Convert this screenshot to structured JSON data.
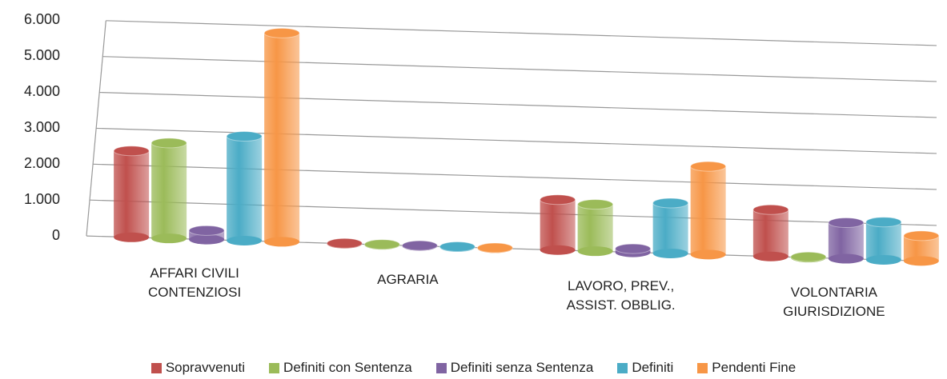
{
  "chart_data": {
    "type": "bar",
    "categories": [
      "AFFARI CIVILI CONTENZIOSI",
      "AGRARIA",
      "LAVORO, PREV., ASSIST. OBBLIG.",
      "VOLONTARIA GIURISDIZIONE"
    ],
    "series": [
      {
        "name": "Sopravvenuti",
        "color": "#c0504d",
        "values": [
          2400,
          10,
          1400,
          1300
        ]
      },
      {
        "name": "Definiti con Sentenza",
        "color": "#9bbb59",
        "values": [
          2650,
          10,
          1300,
          20
        ]
      },
      {
        "name": "Definiti senza Sentenza",
        "color": "#8064a2",
        "values": [
          250,
          10,
          100,
          1000
        ]
      },
      {
        "name": "Definiti",
        "color": "#4bacc6",
        "values": [
          2900,
          10,
          1400,
          1050
        ]
      },
      {
        "name": "Pendenti Fine",
        "color": "#f79646",
        "values": [
          5800,
          10,
          2450,
          700
        ]
      }
    ],
    "ylim": [
      0,
      6000
    ],
    "yticks": [
      0,
      {
        "value": 1000,
        "label": "1.000"
      },
      {
        "value": 2000,
        "label": "2.000"
      },
      {
        "value": 3000,
        "label": "3.000"
      },
      {
        "value": 4000,
        "label": "4.000"
      },
      {
        "value": 5000,
        "label": "5.000"
      },
      {
        "value": 6000,
        "label": "6.000"
      }
    ],
    "grid": true,
    "legend": "bottom"
  }
}
